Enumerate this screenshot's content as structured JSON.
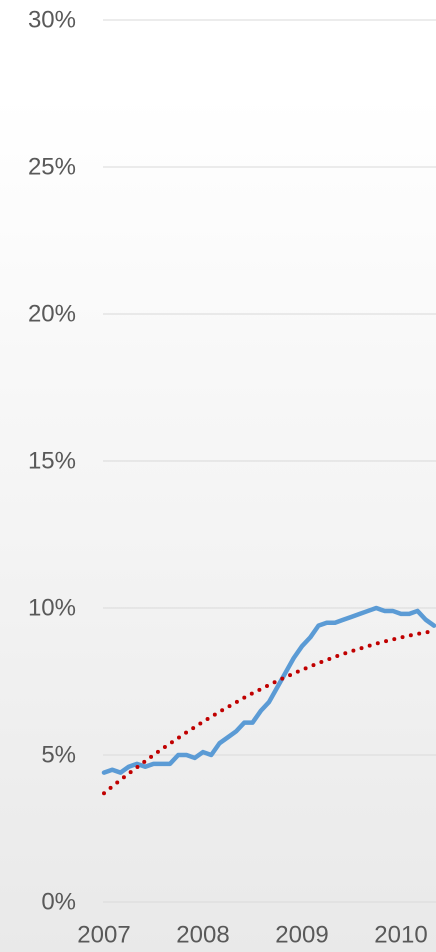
{
  "chart_data": {
    "type": "line",
    "categories": [
      "2007",
      null,
      null,
      null,
      null,
      null,
      null,
      null,
      null,
      null,
      null,
      null,
      "2008",
      null,
      null,
      null,
      null,
      null,
      null,
      null,
      null,
      null,
      null,
      null,
      "2009",
      null,
      null,
      null,
      null,
      null,
      null,
      null,
      null,
      null,
      null,
      null,
      "2010",
      null,
      null,
      null,
      null
    ],
    "series": [
      {
        "color": "#5b9bd5",
        "style": "solid",
        "values": [
          4.4,
          4.5,
          4.4,
          4.6,
          4.7,
          4.6,
          4.7,
          4.7,
          4.7,
          5.0,
          5.0,
          4.9,
          5.1,
          5.0,
          5.4,
          5.6,
          5.8,
          6.1,
          6.1,
          6.5,
          6.8,
          7.3,
          7.8,
          8.3,
          8.7,
          9.0,
          9.4,
          9.5,
          9.5,
          9.6,
          9.7,
          9.8,
          9.9,
          10.0,
          9.9,
          9.9,
          9.8,
          9.8,
          9.9,
          9.6,
          9.4
        ]
      },
      {
        "color": "#c00000",
        "style": "dotted",
        "values": [
          3.7,
          3.93,
          4.15,
          4.37,
          4.58,
          4.79,
          5.0,
          5.2,
          5.39,
          5.58,
          5.77,
          5.95,
          6.13,
          6.3,
          6.47,
          6.63,
          6.79,
          6.95,
          7.1,
          7.24,
          7.38,
          7.52,
          7.65,
          7.77,
          7.9,
          8.01,
          8.13,
          8.23,
          8.34,
          8.44,
          8.53,
          8.62,
          8.7,
          8.79,
          8.86,
          8.93,
          9.0,
          9.06,
          9.12,
          9.17,
          9.22
        ]
      }
    ],
    "ylim": [
      0,
      30
    ],
    "yticks": [
      {
        "value": 0,
        "label": "0%"
      },
      {
        "value": 5,
        "label": "5%"
      },
      {
        "value": 10,
        "label": "10%"
      },
      {
        "value": 15,
        "label": "15%"
      },
      {
        "value": 20,
        "label": "20%"
      },
      {
        "value": 25,
        "label": "25%"
      },
      {
        "value": 30,
        "label": "30%"
      }
    ],
    "grid": true
  }
}
